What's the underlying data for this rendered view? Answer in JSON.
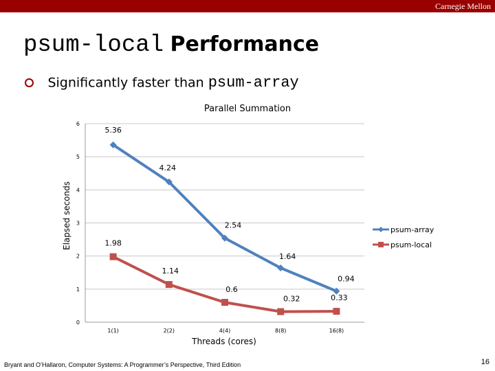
{
  "header": {
    "brand": "Carnegie Mellon",
    "bar_color": "#990000"
  },
  "slide": {
    "title_code": "psum-local",
    "title_text": "Performance",
    "bullet_text": "Significantly faster than ",
    "bullet_code": "psum-array",
    "bullet_icon": "ring-bullet-icon"
  },
  "footer": {
    "citation": "Bryant and O’Hallaron, Computer Systems: A Programmer’s Perspective, Third Edition",
    "page_number": "16"
  },
  "chart_data": {
    "type": "line",
    "title": "Parallel Summation",
    "xlabel": "Threads (cores)",
    "ylabel": "Elapsed seconds",
    "categories": [
      "1(1)",
      "2(2)",
      "4(4)",
      "8(8)",
      "16(8)"
    ],
    "ylim": [
      0,
      6
    ],
    "yticks": [
      "0",
      "1",
      "2",
      "3",
      "4",
      "5",
      "6"
    ],
    "grid": true,
    "legend": "right",
    "series": [
      {
        "name": "psum-array",
        "color": "#4f81bd",
        "marker": "diamond",
        "values": [
          5.36,
          4.24,
          2.54,
          1.64,
          0.94
        ],
        "labels": [
          "5.36",
          "4.24",
          "2.54",
          "1.64",
          "0.94"
        ]
      },
      {
        "name": "psum-local",
        "color": "#c0504d",
        "marker": "square",
        "values": [
          1.98,
          1.14,
          0.6,
          0.32,
          0.33
        ],
        "labels": [
          "1.98",
          "1.14",
          "0.6",
          "0.32",
          "0.33"
        ]
      }
    ]
  }
}
